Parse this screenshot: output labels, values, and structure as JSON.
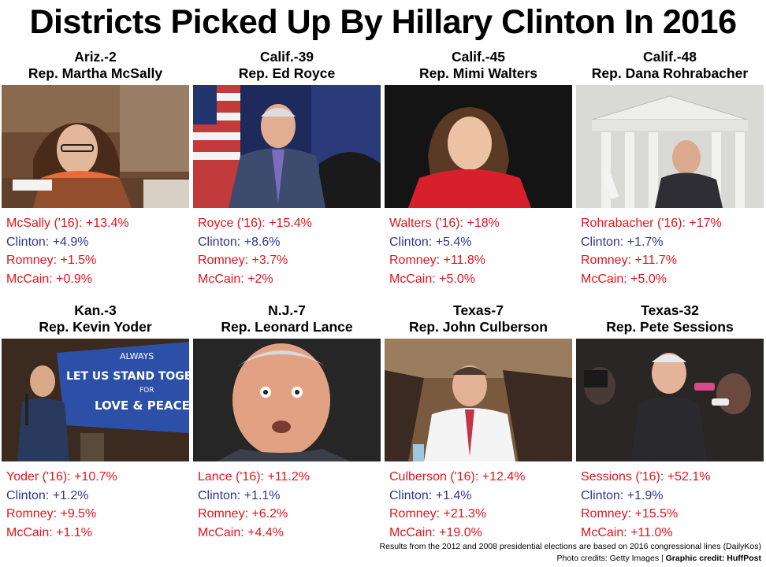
{
  "title": "Districts Picked Up By Hillary Clinton In 2016",
  "cards": [
    {
      "district": "Ariz.-2",
      "rep": "Rep. Martha McSally",
      "lines": [
        "McSally ('16): +13.4%",
        "Clinton: +4.9%",
        "Romney: +1.5%",
        "McCain: +0.9%"
      ]
    },
    {
      "district": "Calif.-39",
      "rep": "Rep. Ed Royce",
      "lines": [
        "Royce ('16): +15.4%",
        "Clinton: +8.6%",
        "Romney: +3.7%",
        "McCain: +2%"
      ]
    },
    {
      "district": "Calif.-45",
      "rep": "Rep. Mimi Walters",
      "lines": [
        "Walters ('16): +18%",
        "Clinton: +5.4%",
        "Romney: +11.8%",
        "McCain: +5.0%"
      ]
    },
    {
      "district": "Calif.-48",
      "rep": "Rep. Dana Rohrabacher",
      "lines": [
        "Rohrabacher ('16): +17%",
        "Clinton: +1.7%",
        "Romney: +11.7%",
        "McCain: +5.0%"
      ]
    },
    {
      "district": "Kan.-3",
      "rep": "Rep. Kevin Yoder",
      "lines": [
        "Yoder ('16): +10.7%",
        "Clinton: +1.2%",
        "Romney: +9.5%",
        "McCain: +1.1%"
      ],
      "banner": [
        "ALWAYS",
        "LET US STAND TOGETHER",
        "FOR",
        "LOVE & PEACE"
      ]
    },
    {
      "district": "N.J.-7",
      "rep": "Rep. Leonard Lance",
      "lines": [
        "Lance ('16): +11.2%",
        "Clinton: +1.1%",
        "Romney: +6.2%",
        "McCain: +4.4%"
      ]
    },
    {
      "district": "Texas-7",
      "rep": "Rep. John Culberson",
      "lines": [
        "Culberson ('16): +12.4%",
        "Clinton: +1.4%",
        "Romney: +21.3%",
        "McCain: +19.0%"
      ]
    },
    {
      "district": "Texas-32",
      "rep": "Rep. Pete Sessions",
      "lines": [
        "Sessions ('16): +52.1%",
        "Clinton: +1.9%",
        "Romney: +15.5%",
        "McCain: +11.0%"
      ]
    }
  ],
  "footer": {
    "note": "Results from the 2012 and 2008 presidential elections are based on 2016 congressional lines (DailyKos)",
    "photo_credit": "Photo credits: Getty Images |",
    "graphic_credit": "Graphic credit: HuffPost"
  },
  "colors": {
    "red": "#e4141b",
    "blue": "#2f3592"
  }
}
